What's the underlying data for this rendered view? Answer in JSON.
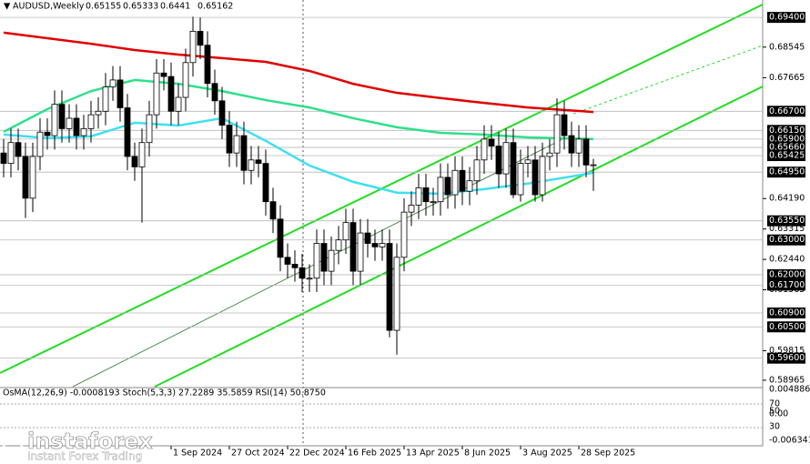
{
  "chart_data": {
    "type": "candlestick",
    "symbol": "AUDUSD,Weekly",
    "indicator_label": "OsMA(12,26,9) -0.0008193 Stoch(5,3,3) 27.2289 35.5859 RSI(14) 50.8750",
    "indicator_ticks": [
      {
        "value": 0.0048861,
        "label": "0.0048861"
      },
      70,
      50,
      {
        "value": 0,
        "label": "0.00"
      },
      30,
      {
        "value": -0.006341,
        "label": "-0.006341"
      }
    ],
    "watermark": "instaforex",
    "watermark_sub": "Instant Forex Trading",
    "ylim": [
      0.5878,
      0.699
    ],
    "yticks": [
      {
        "value": 0.68545,
        "label": "0.68545"
      },
      {
        "value": 0.67665,
        "label": "0.67665"
      },
      {
        "value": 0.6419,
        "label": "0.64190"
      },
      {
        "value": 0.63315,
        "label": "0.63315"
      },
      {
        "value": 0.6244,
        "label": "0.62440"
      },
      {
        "value": 0.61565,
        "label": "0.61565"
      },
      {
        "value": 0.59815,
        "label": "0.59815"
      },
      {
        "value": 0.58965,
        "label": "0.58965"
      }
    ],
    "levels": [
      {
        "value": 0.694,
        "label": "0.69400"
      },
      {
        "value": 0.667,
        "label": "0.66700"
      },
      {
        "value": 0.6615,
        "label": "0.66150"
      },
      {
        "value": 0.659,
        "label": "0.65900"
      },
      {
        "value": 0.6566,
        "label": "0.65660"
      },
      {
        "value": 0.65425,
        "label": "0.65425"
      },
      {
        "value": 0.6495,
        "label": "0.64950"
      },
      {
        "value": 0.6355,
        "label": "0.63550"
      },
      {
        "value": 0.63,
        "label": "0.63000"
      },
      {
        "value": 0.62,
        "label": "0.62000"
      },
      {
        "value": 0.617,
        "label": "0.61700"
      },
      {
        "value": 0.609,
        "label": "0.60900"
      },
      {
        "value": 0.605,
        "label": "0.60500"
      },
      {
        "value": 0.596,
        "label": "0.59600"
      }
    ],
    "categories": [
      null,
      null,
      null,
      null,
      null,
      null,
      null,
      null,
      null,
      null,
      null,
      null,
      null,
      null,
      null,
      null,
      null,
      null,
      null,
      null,
      null,
      null,
      null,
      "1 Sep 2024",
      null,
      null,
      null,
      null,
      null,
      null,
      null,
      "27 Oct 2024",
      null,
      null,
      null,
      null,
      null,
      null,
      null,
      "22 Dec 2024",
      null,
      null,
      null,
      null,
      null,
      null,
      null,
      "16 Feb 2025",
      null,
      null,
      null,
      null,
      null,
      null,
      null,
      "13 Apr 2025",
      null,
      null,
      null,
      null,
      null,
      null,
      null,
      "8 Jun 2025",
      null,
      null,
      null,
      null,
      null,
      null,
      null,
      "3 Aug 2025",
      null,
      null,
      null,
      null,
      null,
      null,
      null,
      "28 Sep 2025",
      null,
      null
    ],
    "open": [
      0.655,
      0.652,
      0.658,
      0.654,
      0.642,
      0.654,
      0.661,
      0.66,
      0.669,
      0.662,
      0.665,
      0.66,
      0.662,
      0.666,
      0.667,
      0.674,
      0.676,
      0.668,
      0.654,
      0.651,
      0.658,
      0.666,
      0.678,
      0.677,
      0.667,
      0.671,
      0.681,
      0.69,
      0.686,
      0.675,
      0.67,
      0.663,
      0.655,
      0.66,
      0.65,
      0.653,
      0.652,
      0.641,
      0.636,
      0.625,
      0.623,
      0.622,
      0.619,
      0.619,
      0.629,
      0.621,
      0.627,
      0.63,
      0.635,
      0.621,
      0.632,
      0.629,
      0.628,
      0.629,
      0.604,
      0.625,
      0.638,
      0.64,
      0.645,
      0.641,
      0.641,
      0.648,
      0.643,
      0.65,
      0.644,
      0.647,
      0.653,
      0.659,
      0.657,
      0.649,
      0.658,
      0.643,
      0.652,
      0.653,
      0.643,
      0.654,
      0.655,
      0.666,
      0.66,
      0.655,
      0.659,
      0.65155
    ],
    "high": [
      0.659,
      0.662,
      0.662,
      0.658,
      0.658,
      0.665,
      0.665,
      0.673,
      0.673,
      0.669,
      0.669,
      0.666,
      0.67,
      0.671,
      0.678,
      0.68,
      0.68,
      0.672,
      0.658,
      0.662,
      0.67,
      0.682,
      0.682,
      0.681,
      0.675,
      0.685,
      0.6942,
      0.694,
      0.69,
      0.679,
      0.674,
      0.667,
      0.664,
      0.664,
      0.657,
      0.657,
      0.656,
      0.645,
      0.64,
      0.629,
      0.627,
      0.626,
      0.623,
      0.633,
      0.633,
      0.631,
      0.634,
      0.639,
      0.639,
      0.636,
      0.636,
      0.633,
      0.633,
      0.633,
      0.629,
      0.642,
      0.644,
      0.649,
      0.649,
      0.645,
      0.652,
      0.652,
      0.654,
      0.654,
      0.651,
      0.657,
      0.663,
      0.663,
      0.661,
      0.662,
      0.662,
      0.656,
      0.657,
      0.657,
      0.658,
      0.659,
      0.6707,
      0.67,
      0.664,
      0.663,
      0.663,
      0.65333
    ],
    "low": [
      0.648,
      0.648,
      0.65,
      0.6363,
      0.638,
      0.65,
      0.656,
      0.656,
      0.658,
      0.658,
      0.656,
      0.656,
      0.658,
      0.662,
      0.663,
      0.67,
      0.664,
      0.65,
      0.647,
      0.635,
      0.654,
      0.662,
      0.673,
      0.663,
      0.663,
      0.667,
      0.677,
      0.682,
      0.671,
      0.666,
      0.659,
      0.651,
      0.651,
      0.646,
      0.646,
      0.648,
      0.637,
      0.632,
      0.621,
      0.619,
      0.618,
      0.615,
      0.615,
      0.615,
      0.617,
      0.617,
      0.623,
      0.626,
      0.617,
      0.617,
      0.625,
      0.624,
      0.624,
      0.602,
      0.597,
      0.621,
      0.634,
      0.636,
      0.637,
      0.637,
      0.637,
      0.639,
      0.639,
      0.64,
      0.64,
      0.643,
      0.649,
      0.653,
      0.645,
      0.645,
      0.642,
      0.641,
      0.648,
      0.641,
      0.641,
      0.65,
      0.651,
      0.656,
      0.651,
      0.651,
      0.648,
      0.6441
    ],
    "close": [
      0.652,
      0.658,
      0.654,
      0.642,
      0.654,
      0.661,
      0.66,
      0.669,
      0.662,
      0.665,
      0.66,
      0.662,
      0.666,
      0.667,
      0.674,
      0.676,
      0.668,
      0.654,
      0.651,
      0.658,
      0.666,
      0.678,
      0.677,
      0.667,
      0.671,
      0.681,
      0.69,
      0.686,
      0.675,
      0.67,
      0.663,
      0.655,
      0.66,
      0.65,
      0.653,
      0.652,
      0.641,
      0.636,
      0.625,
      0.623,
      0.622,
      0.619,
      0.619,
      0.629,
      0.621,
      0.627,
      0.63,
      0.635,
      0.621,
      0.632,
      0.629,
      0.628,
      0.629,
      0.604,
      0.625,
      0.638,
      0.64,
      0.645,
      0.641,
      0.641,
      0.648,
      0.643,
      0.65,
      0.644,
      0.647,
      0.653,
      0.659,
      0.657,
      0.649,
      0.658,
      0.643,
      0.652,
      0.653,
      0.643,
      0.654,
      0.655,
      0.666,
      0.66,
      0.655,
      0.659,
      0.65155,
      0.65162
    ],
    "series": [
      {
        "color": "#e00000",
        "x": [
          0,
          6,
          12,
          18,
          24,
          30,
          36,
          42,
          48,
          54,
          60,
          66,
          72,
          81
        ],
        "values": [
          0.6896,
          0.688,
          0.6864,
          0.6846,
          0.6833,
          0.6823,
          0.6812,
          0.6786,
          0.6749,
          0.6723,
          0.6708,
          0.6694,
          0.6681,
          0.6668
        ]
      },
      {
        "color": "#2ee08a",
        "x": [
          0,
          6,
          12,
          18,
          24,
          30,
          36,
          42,
          48,
          54,
          60,
          66,
          72,
          81
        ],
        "values": [
          0.6611,
          0.6676,
          0.6728,
          0.676,
          0.6749,
          0.6728,
          0.6702,
          0.6681,
          0.665,
          0.6624,
          0.6608,
          0.6603,
          0.6595,
          0.659
        ]
      },
      {
        "color": "#3ee0f0",
        "x": [
          0,
          6,
          12,
          18,
          24,
          30,
          36,
          42,
          48,
          54,
          60,
          66,
          72,
          81
        ],
        "values": [
          0.6603,
          0.6593,
          0.6598,
          0.6637,
          0.6629,
          0.665,
          0.6585,
          0.6514,
          0.6467,
          0.6436,
          0.6433,
          0.6446,
          0.6462,
          0.6493
        ]
      }
    ]
  }
}
